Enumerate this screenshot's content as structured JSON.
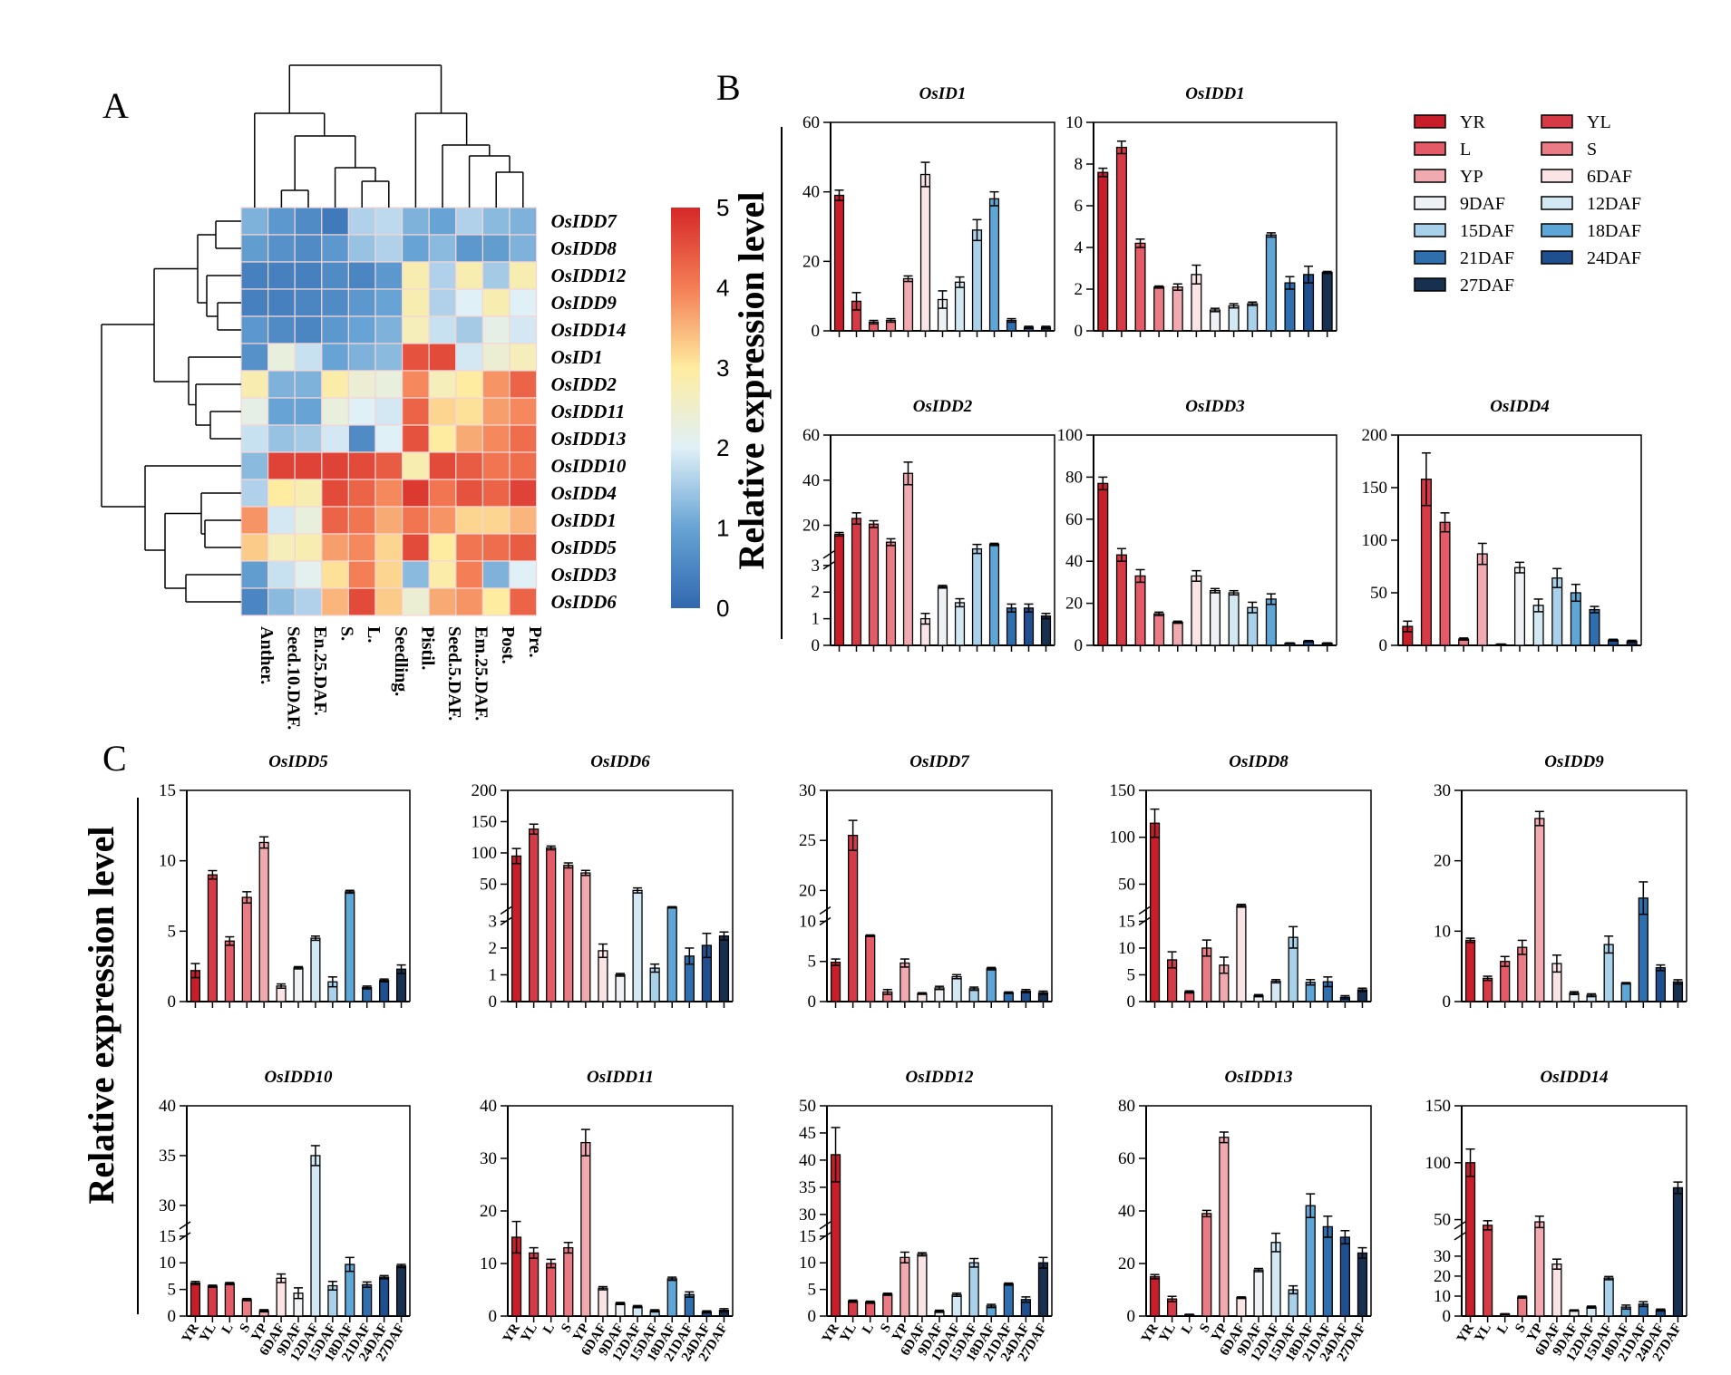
{
  "labels": {
    "A": "A",
    "B": "B",
    "C": "C"
  },
  "y_axis_label": "Relative expression level",
  "colors": {
    "YR": "#c81e2a",
    "YL": "#d63a46",
    "L": "#e45a66",
    "S": "#ea7c86",
    "YP": "#f2aab1",
    "6DAF": "#fbe4e6",
    "9DAF": "#eef2f5",
    "12DAF": "#d2e9f3",
    "15DAF": "#a9d1e9",
    "18DAF": "#5ea6d6",
    "21DAF": "#2f6fae",
    "24DAF": "#1f4f8e",
    "27DAF": "#17304f"
  },
  "legend": {
    "entries": [
      "YR",
      "YL",
      "L",
      "S",
      "YP",
      "6DAF",
      "9DAF",
      "12DAF",
      "15DAF",
      "18DAF",
      "21DAF",
      "24DAF",
      "27DAF"
    ]
  },
  "heatmap": {
    "rows": [
      "OsIDD7",
      "OsIDD8",
      "OsIDD12",
      "OsIDD9",
      "OsIDD14",
      "OsID1",
      "OsIDD2",
      "OsIDD11",
      "OsIDD13",
      "OsIDD10",
      "OsIDD4",
      "OsIDD1",
      "OsIDD5",
      "OsIDD3",
      "OsIDD6"
    ],
    "columns": [
      "Anther.",
      "Seed.10.DAF.",
      "En.25.DAF.",
      "S.",
      "L.",
      "Seedling.",
      "Pistil.",
      "Seed.5.DAF.",
      "Em.25.DAF.",
      "Post.",
      "Pre."
    ],
    "values": [
      [
        1.2,
        0.8,
        0.6,
        0.3,
        1.6,
        1.7,
        1.2,
        1.0,
        1.6,
        1.3,
        1.2
      ],
      [
        0.9,
        0.7,
        0.6,
        0.8,
        1.4,
        1.6,
        1.0,
        1.3,
        0.8,
        0.9,
        1.2
      ],
      [
        0.4,
        0.4,
        0.4,
        0.6,
        0.5,
        0.8,
        2.8,
        1.6,
        2.8,
        1.5,
        2.8
      ],
      [
        0.4,
        0.4,
        0.5,
        0.6,
        0.8,
        1.0,
        2.8,
        1.6,
        2.0,
        2.8,
        2.0
      ],
      [
        0.8,
        0.6,
        0.5,
        0.8,
        1.0,
        1.2,
        2.7,
        1.8,
        1.5,
        2.2,
        1.9
      ],
      [
        0.7,
        2.3,
        1.8,
        1.0,
        1.2,
        1.3,
        4.5,
        4.6,
        1.9,
        2.4,
        2.7
      ],
      [
        2.8,
        1.2,
        1.2,
        2.9,
        2.4,
        2.3,
        3.9,
        2.7,
        3.0,
        3.8,
        4.3
      ],
      [
        2.2,
        1.0,
        1.0,
        2.3,
        2.0,
        1.9,
        4.3,
        3.2,
        3.1,
        3.7,
        3.9
      ],
      [
        1.8,
        1.4,
        1.5,
        1.9,
        0.6,
        2.0,
        4.5,
        3.0,
        3.6,
        3.9,
        4.2
      ],
      [
        1.3,
        4.7,
        4.7,
        4.7,
        4.6,
        4.4,
        2.8,
        4.6,
        4.4,
        4.1,
        4.2
      ],
      [
        1.6,
        3.0,
        2.8,
        4.6,
        4.3,
        3.9,
        4.8,
        4.1,
        4.5,
        4.3,
        4.7
      ],
      [
        3.8,
        1.9,
        2.3,
        4.3,
        4.1,
        3.6,
        4.1,
        3.8,
        3.2,
        3.2,
        3.5
      ],
      [
        3.3,
        2.7,
        2.8,
        3.7,
        3.9,
        3.2,
        4.6,
        3.0,
        4.1,
        4.2,
        4.4
      ],
      [
        0.9,
        1.8,
        2.1,
        3.1,
        4.0,
        3.2,
        1.3,
        2.9,
        4.0,
        1.2,
        2.0
      ],
      [
        0.5,
        1.3,
        1.6,
        3.5,
        4.6,
        3.3,
        2.4,
        3.6,
        3.8,
        3.0,
        4.3
      ]
    ],
    "colorbar": {
      "min": 0,
      "max": 5,
      "ticks": [
        "0",
        "1",
        "2",
        "3",
        "4",
        "5"
      ]
    }
  },
  "chart_data": [
    {
      "type": "bar",
      "title": "OsID1",
      "categories": [
        "YR",
        "YL",
        "L",
        "S",
        "YP",
        "6DAF",
        "9DAF",
        "12DAF",
        "15DAF",
        "18DAF",
        "21DAF",
        "24DAF",
        "27DAF"
      ],
      "values": [
        39,
        8.5,
        2.5,
        3,
        15,
        45,
        9,
        14,
        29,
        38,
        3,
        1,
        1
      ],
      "errors": [
        1.5,
        2.5,
        0.5,
        0.5,
        0.8,
        3.5,
        2.5,
        1.5,
        3,
        2,
        0.5,
        0.3,
        0.3
      ],
      "ylim": [
        0,
        60
      ],
      "yticks": [
        "0",
        "20",
        "40",
        "60"
      ],
      "show_xlabels": false
    },
    {
      "type": "bar",
      "title": "OsIDD1",
      "categories": [
        "YR",
        "YL",
        "L",
        "S",
        "YP",
        "6DAF",
        "9DAF",
        "12DAF",
        "15DAF",
        "18DAF",
        "21DAF",
        "24DAF",
        "27DAF"
      ],
      "values": [
        7.6,
        8.8,
        4.2,
        2.1,
        2.1,
        2.7,
        1.0,
        1.2,
        1.3,
        4.6,
        2.3,
        2.7,
        2.8
      ],
      "errors": [
        0.2,
        0.3,
        0.2,
        0.05,
        0.15,
        0.45,
        0.08,
        0.1,
        0.08,
        0.1,
        0.3,
        0.4,
        0.05
      ],
      "ylim": [
        0,
        10
      ],
      "yticks": [
        "0",
        "2",
        "4",
        "6",
        "8",
        "10"
      ],
      "show_xlabels": false
    },
    {
      "type": "bar",
      "title": "OsIDD2",
      "categories": [
        "YR",
        "YL",
        "L",
        "S",
        "YP",
        "6DAF",
        "9DAF",
        "12DAF",
        "15DAF",
        "18DAF",
        "21DAF",
        "24DAF",
        "27DAF"
      ],
      "values": [
        16,
        23,
        20.5,
        12.5,
        43,
        1.0,
        2.2,
        1.6,
        9.5,
        11.5,
        1.4,
        1.4,
        1.1
      ],
      "errors": [
        0.8,
        2.5,
        1.5,
        1.5,
        5,
        0.2,
        0.05,
        0.15,
        2,
        0.5,
        0.15,
        0.15,
        0.1
      ],
      "ylim": [
        0,
        60
      ],
      "break": [
        3,
        7
      ],
      "yticks": [
        "0",
        "1",
        "2",
        "3",
        "20",
        "40",
        "60"
      ],
      "show_xlabels": false
    },
    {
      "type": "bar",
      "title": "OsIDD3",
      "categories": [
        "YR",
        "YL",
        "L",
        "S",
        "YP",
        "6DAF",
        "9DAF",
        "12DAF",
        "15DAF",
        "18DAF",
        "21DAF",
        "24DAF",
        "27DAF"
      ],
      "values": [
        77,
        43,
        33,
        15,
        11,
        33,
        26,
        25,
        18,
        22,
        1,
        2,
        1
      ],
      "errors": [
        3,
        3,
        3,
        0.8,
        0.5,
        2.5,
        1,
        1,
        2.5,
        2.5,
        0.2,
        0.3,
        0.2
      ],
      "ylim": [
        0,
        100
      ],
      "yticks": [
        "0",
        "20",
        "40",
        "60",
        "80",
        "100"
      ],
      "show_xlabels": false
    },
    {
      "type": "bar",
      "title": "OsIDD4",
      "categories": [
        "YR",
        "YL",
        "L",
        "S",
        "YP",
        "6DAF",
        "9DAF",
        "12DAF",
        "15DAF",
        "18DAF",
        "21DAF",
        "24DAF",
        "27DAF"
      ],
      "values": [
        18,
        158,
        117,
        6,
        87,
        1,
        74,
        38,
        64,
        50,
        34,
        5,
        4
      ],
      "errors": [
        5,
        25,
        9,
        1,
        10,
        0.3,
        5,
        6,
        9,
        8,
        3,
        0.8,
        0.8
      ],
      "ylim": [
        0,
        200
      ],
      "yticks": [
        "0",
        "50",
        "100",
        "150",
        "200"
      ],
      "show_xlabels": false
    },
    {
      "type": "bar",
      "title": "OsIDD5",
      "categories": [
        "YR",
        "YL",
        "L",
        "S",
        "YP",
        "6DAF",
        "9DAF",
        "12DAF",
        "15DAF",
        "18DAF",
        "21DAF",
        "24DAF",
        "27DAF"
      ],
      "values": [
        2.2,
        9.0,
        4.3,
        7.4,
        11.3,
        1.1,
        2.4,
        4.5,
        1.4,
        7.8,
        1.0,
        1.5,
        2.3
      ],
      "errors": [
        0.5,
        0.3,
        0.3,
        0.4,
        0.4,
        0.15,
        0.08,
        0.15,
        0.35,
        0.1,
        0.1,
        0.1,
        0.3
      ],
      "ylim": [
        0,
        15
      ],
      "yticks": [
        "0",
        "5",
        "10",
        "15"
      ],
      "show_xlabels": false
    },
    {
      "type": "bar",
      "title": "OsIDD6",
      "categories": [
        "YR",
        "YL",
        "L",
        "S",
        "YP",
        "6DAF",
        "9DAF",
        "12DAF",
        "15DAF",
        "18DAF",
        "21DAF",
        "24DAF",
        "27DAF"
      ],
      "values": [
        95,
        138,
        108,
        80,
        68,
        1.9,
        1.0,
        40,
        1.25,
        13,
        1.7,
        2.1,
        2.45
      ],
      "errors": [
        12,
        8,
        3,
        4,
        4,
        0.25,
        0.05,
        4,
        0.15,
        1,
        0.3,
        0.45,
        0.15
      ],
      "ylim": [
        0,
        200
      ],
      "break": [
        3,
        8
      ],
      "yticks": [
        "0",
        "1",
        "2",
        "3",
        "50",
        "100",
        "150",
        "200"
      ],
      "show_xlabels": false
    },
    {
      "type": "bar",
      "title": "OsIDD7",
      "categories": [
        "YR",
        "YL",
        "L",
        "S",
        "YP",
        "6DAF",
        "9DAF",
        "12DAF",
        "15DAF",
        "18DAF",
        "21DAF",
        "24DAF",
        "27DAF"
      ],
      "values": [
        4.9,
        25.5,
        8.2,
        1.2,
        4.8,
        1.0,
        1.7,
        3.1,
        1.6,
        4.1,
        1.1,
        1.3,
        1.1
      ],
      "errors": [
        0.4,
        1.5,
        0.1,
        0.3,
        0.5,
        0.1,
        0.2,
        0.25,
        0.2,
        0.15,
        0.1,
        0.2,
        0.2
      ],
      "ylim": [
        0,
        30
      ],
      "break": [
        10,
        18
      ],
      "yticks": [
        "0",
        "5",
        "10",
        "20",
        "25",
        "30"
      ],
      "show_xlabels": false
    },
    {
      "type": "bar",
      "title": "OsIDD8",
      "categories": [
        "YR",
        "YL",
        "L",
        "S",
        "YP",
        "6DAF",
        "9DAF",
        "12DAF",
        "15DAF",
        "18DAF",
        "21DAF",
        "24DAF",
        "27DAF"
      ],
      "values": [
        115,
        7.8,
        1.8,
        10,
        6.8,
        27,
        1.1,
        3.8,
        12,
        3.6,
        3.7,
        0.8,
        2.2
      ],
      "errors": [
        15,
        1.5,
        0.2,
        1.5,
        1.5,
        1.5,
        0.2,
        0.3,
        2,
        0.5,
        0.9,
        0.3,
        0.3
      ],
      "ylim": [
        0,
        150
      ],
      "break": [
        15,
        22
      ],
      "yticks": [
        "0",
        "5",
        "10",
        "15",
        "50",
        "100",
        "150"
      ],
      "show_xlabels": false
    },
    {
      "type": "bar",
      "title": "OsIDD9",
      "categories": [
        "YR",
        "YL",
        "L",
        "S",
        "YP",
        "6DAF",
        "9DAF",
        "12DAF",
        "15DAF",
        "18DAF",
        "21DAF",
        "24DAF",
        "27DAF"
      ],
      "values": [
        8.7,
        3.3,
        5.7,
        7.7,
        26,
        5.4,
        1.2,
        0.9,
        8.1,
        2.6,
        14.7,
        4.8,
        2.8
      ],
      "errors": [
        0.3,
        0.3,
        0.7,
        1,
        1,
        1.2,
        0.2,
        0.2,
        1.2,
        0.1,
        2.3,
        0.4,
        0.3
      ],
      "ylim": [
        0,
        30
      ],
      "yticks": [
        "0",
        "10",
        "20",
        "30"
      ],
      "show_xlabels": false
    },
    {
      "type": "bar",
      "title": "OsIDD10",
      "categories": [
        "YR",
        "YL",
        "L",
        "S",
        "YP",
        "6DAF",
        "9DAF",
        "12DAF",
        "15DAF",
        "18DAF",
        "21DAF",
        "24DAF",
        "27DAF"
      ],
      "values": [
        6.2,
        5.6,
        6.1,
        3.1,
        1.0,
        7.1,
        4.3,
        35,
        5.7,
        9.7,
        5.9,
        7.3,
        9.4
      ],
      "errors": [
        0.3,
        0.2,
        0.2,
        0.2,
        0.2,
        0.8,
        1.0,
        1,
        0.8,
        1.3,
        0.5,
        0.3,
        0.3
      ],
      "ylim": [
        0,
        40
      ],
      "break": [
        15,
        28
      ],
      "yticks": [
        "0",
        "5",
        "10",
        "15",
        "30",
        "35",
        "40"
      ],
      "show_xlabels": true
    },
    {
      "type": "bar",
      "title": "OsIDD11",
      "categories": [
        "YR",
        "YL",
        "L",
        "S",
        "YP",
        "6DAF",
        "9DAF",
        "12DAF",
        "15DAF",
        "18DAF",
        "21DAF",
        "24DAF",
        "27DAF"
      ],
      "values": [
        15,
        12,
        10,
        13,
        33,
        5.3,
        2.4,
        1.8,
        1.0,
        7.1,
        4.1,
        0.8,
        1.1
      ],
      "errors": [
        3,
        1,
        0.8,
        1,
        2.5,
        0.3,
        0.2,
        0.2,
        0.2,
        0.3,
        0.5,
        0.2,
        0.3
      ],
      "ylim": [
        0,
        40
      ],
      "yticks": [
        "0",
        "10",
        "20",
        "30",
        "40"
      ],
      "show_xlabels": true
    },
    {
      "type": "bar",
      "title": "OsIDD12",
      "categories": [
        "YR",
        "YL",
        "L",
        "S",
        "YP",
        "6DAF",
        "9DAF",
        "12DAF",
        "15DAF",
        "18DAF",
        "21DAF",
        "24DAF",
        "27DAF"
      ],
      "values": [
        41,
        2.8,
        2.6,
        4.1,
        11,
        11.6,
        0.9,
        4.0,
        10,
        1.9,
        6.0,
        3.1,
        10
      ],
      "errors": [
        5,
        0.2,
        0.2,
        0.2,
        1,
        0.3,
        0.2,
        0.3,
        0.8,
        0.3,
        0.2,
        0.5,
        1
      ],
      "ylim": [
        0,
        50
      ],
      "break": [
        15,
        28
      ],
      "yticks": [
        "0",
        "5",
        "10",
        "15",
        "30",
        "35",
        "40",
        "45",
        "50"
      ],
      "show_xlabels": true
    },
    {
      "type": "bar",
      "title": "OsIDD13",
      "categories": [
        "YR",
        "YL",
        "L",
        "S",
        "YP",
        "6DAF",
        "9DAF",
        "12DAF",
        "15DAF",
        "18DAF",
        "21DAF",
        "24DAF",
        "27DAF"
      ],
      "values": [
        15,
        6.5,
        0.5,
        39,
        68,
        7,
        17.5,
        28,
        10,
        42,
        34,
        30,
        24
      ],
      "errors": [
        0.8,
        1,
        0.2,
        1.2,
        2,
        0.3,
        0.6,
        3.5,
        1.5,
        4.5,
        4,
        2.5,
        2
      ],
      "ylim": [
        0,
        80
      ],
      "yticks": [
        "0",
        "20",
        "40",
        "60",
        "80"
      ],
      "show_xlabels": true
    },
    {
      "type": "bar",
      "title": "OsIDD14",
      "categories": [
        "YR",
        "YL",
        "L",
        "S",
        "YP",
        "6DAF",
        "9DAF",
        "12DAF",
        "15DAF",
        "18DAF",
        "21DAF",
        "24DAF",
        "27DAF"
      ],
      "values": [
        100,
        45,
        1,
        9.5,
        48,
        26,
        2.8,
        4.5,
        19,
        4.5,
        6,
        3,
        78
      ],
      "errors": [
        12,
        4,
        0.2,
        0.5,
        5,
        2.5,
        0.3,
        0.5,
        0.8,
        1,
        1.2,
        0.5,
        5
      ],
      "ylim": [
        0,
        150
      ],
      "break": [
        40,
        45
      ],
      "yticks": [
        "0",
        "10",
        "20",
        "30",
        "50",
        "100",
        "150"
      ],
      "show_xlabels": true
    }
  ]
}
